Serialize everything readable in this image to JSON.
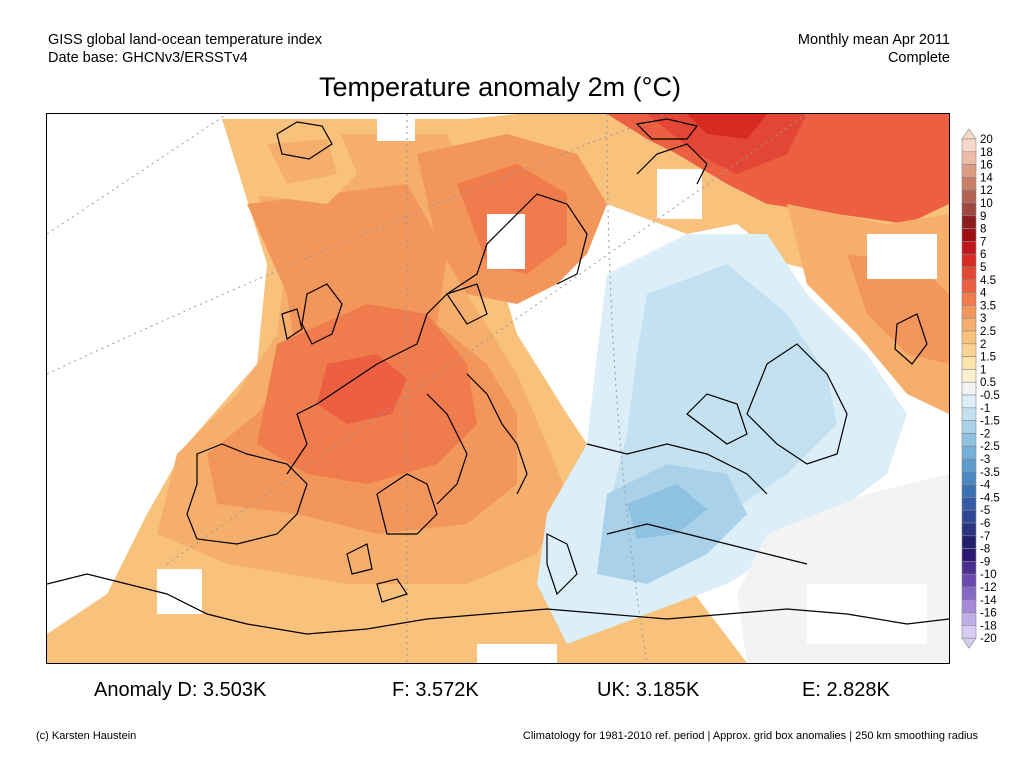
{
  "header": {
    "line1": "GISS global land-ocean temperature index",
    "line2": "Date base: GHCNv3/ERSSTv4",
    "period": "Monthly mean Apr 2011",
    "status": "Complete"
  },
  "title": "Temperature anomaly 2m (°C)",
  "colorbar": {
    "labels": [
      "20",
      "18",
      "16",
      "14",
      "12",
      "10",
      "9",
      "8",
      "7",
      "6",
      "5",
      "4.5",
      "4",
      "3.5",
      "3",
      "2.5",
      "2",
      "1.5",
      "1",
      "0.5",
      "-0.5",
      "-1",
      "-1.5",
      "-2",
      "-2.5",
      "-3",
      "-3.5",
      "-4",
      "-4.5",
      "-5",
      "-6",
      "-7",
      "-8",
      "-9",
      "-10",
      "-12",
      "-14",
      "-16",
      "-18",
      "-20"
    ],
    "colors": [
      "#f7d8c8",
      "#eebca4",
      "#dd9b82",
      "#c97e68",
      "#b46353",
      "#9c4840",
      "#8a1c1c",
      "#a00f12",
      "#c0171a",
      "#d62a22",
      "#e34634",
      "#ec5f41",
      "#f07b4d",
      "#f3965c",
      "#f6ae6c",
      "#f8c27d",
      "#fad392",
      "#fbe3ab",
      "#fdf0cc",
      "#f3f3f3",
      "#dceef8",
      "#c3e1f1",
      "#a9d2ea",
      "#8fc1e0",
      "#76b0d6",
      "#5e9dcb",
      "#4a88bf",
      "#3d72b2",
      "#345ca6",
      "#2d4796",
      "#273583",
      "#221f6f",
      "#2c1a72",
      "#4a2f91",
      "#6a4aaf",
      "#8568c6",
      "#a48ad9",
      "#c0aee8",
      "#d7cdf2"
    ]
  },
  "stats": {
    "d": "Anomaly D: 3.503K",
    "f": "F: 3.572K",
    "uk": "UK: 3.185K",
    "e": "E: 2.828K"
  },
  "footer": {
    "credit": "(c) Karsten Haustein",
    "note": "Climatology for 1981-2010 ref. period | Approx. grid box anomalies | 250 km smoothing radius"
  }
}
